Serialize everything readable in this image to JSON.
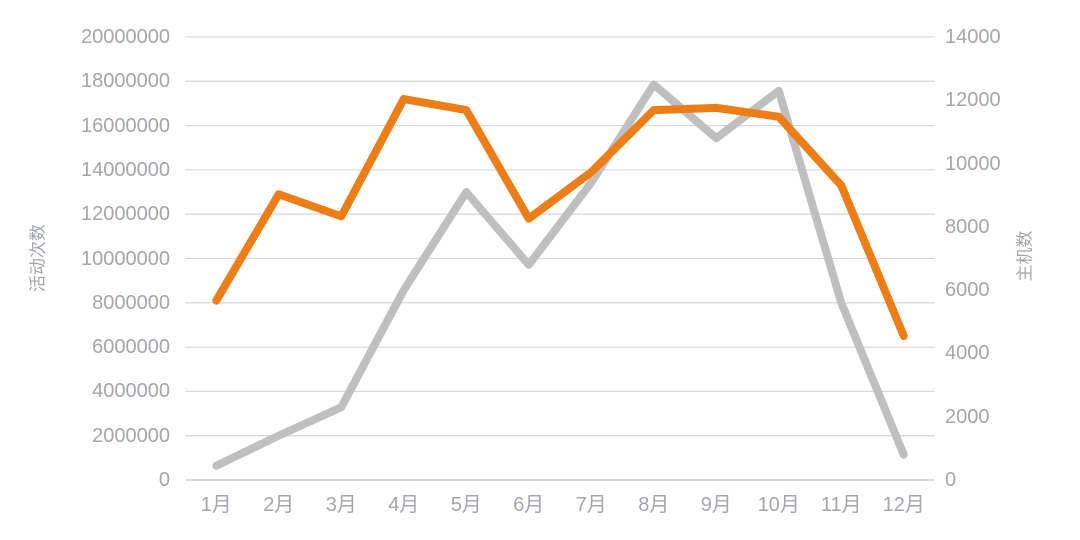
{
  "chart_data": {
    "type": "line",
    "title": "",
    "categories": [
      "1月",
      "2月",
      "3月",
      "4月",
      "5月",
      "6月",
      "7月",
      "8月",
      "9月",
      "10月",
      "11月",
      "12月"
    ],
    "series": [
      {
        "name": "活动次数",
        "axis": "left",
        "color": "#ED7D17",
        "values": [
          8100000,
          12900000,
          11900000,
          17200000,
          16700000,
          11800000,
          13900000,
          16700000,
          16800000,
          16400000,
          13300000,
          6500000
        ]
      },
      {
        "name": "主机数",
        "axis": "right",
        "color": "#BFBFBF",
        "values": [
          450,
          1400,
          2300,
          6000,
          9100,
          6800,
          9400,
          12500,
          10800,
          12300,
          5600,
          800
        ]
      }
    ],
    "left_axis": {
      "label": "活动次数",
      "min": 0,
      "max": 20000000,
      "step": 2000000,
      "ticks": [
        "20000000",
        "18000000",
        "16000000",
        "14000000",
        "12000000",
        "10000000",
        "8000000",
        "6000000",
        "4000000",
        "2000000",
        "0"
      ]
    },
    "right_axis": {
      "label": "主机数",
      "min": 0,
      "max": 14000,
      "step": 2000,
      "ticks": [
        "14000",
        "12000",
        "10000",
        "8000",
        "6000",
        "4000",
        "2000",
        "0"
      ]
    },
    "grid": true,
    "legend": "none",
    "colors": {
      "grid_line": "#D9D9D9",
      "axis_line": "#C2C2C2",
      "tick_text": "#A3A6AA",
      "background": "#FFFFFF"
    }
  }
}
